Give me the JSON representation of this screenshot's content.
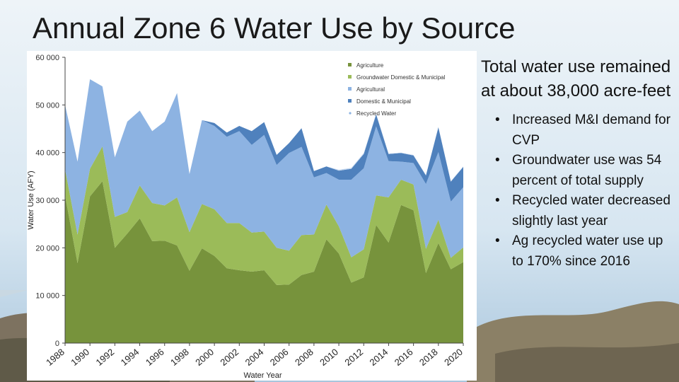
{
  "slide": {
    "title": "Annual Zone 6 Water Use by Source",
    "side_heading": "Total water use remained at about 38,000 acre-feet",
    "bullets": [
      "Increased M&I demand for CVP",
      "Groundwater use was 54 percent of total supply",
      "Recycled water decreased slightly last year",
      "Ag recycled water use up to 170% since 2016"
    ]
  },
  "chart_data": {
    "type": "area",
    "title": "",
    "xlabel": "Water Year",
    "ylabel": "Water Use (AFY)",
    "ylim": [
      0,
      60000
    ],
    "yticks": [
      0,
      10000,
      20000,
      30000,
      40000,
      50000,
      60000
    ],
    "ytick_labels": [
      "0",
      "10 000",
      "20 000",
      "30 000",
      "40 000",
      "50 000",
      "60 000"
    ],
    "xticks": [
      1988,
      1990,
      1992,
      1994,
      1996,
      1998,
      2000,
      2002,
      2004,
      2006,
      2008,
      2010,
      2012,
      2014,
      2016,
      2018,
      2020
    ],
    "stacked": true,
    "legend_position": "top-right",
    "x": [
      1988,
      1989,
      1990,
      1991,
      1992,
      1993,
      1994,
      1995,
      1996,
      1997,
      1998,
      1999,
      2000,
      2001,
      2002,
      2003,
      2004,
      2005,
      2006,
      2007,
      2008,
      2009,
      2010,
      2011,
      2012,
      2013,
      2014,
      2015,
      2016,
      2017,
      2018,
      2019,
      2020
    ],
    "series": [
      {
        "name": "Agriculture",
        "color": "#77933c",
        "values": [
          31000,
          16800,
          30800,
          34000,
          20000,
          23000,
          26200,
          21400,
          21500,
          20500,
          15200,
          19900,
          18300,
          15700,
          15300,
          15000,
          15300,
          12200,
          12300,
          14300,
          15000,
          21800,
          18800,
          12700,
          13800,
          24800,
          21100,
          29000,
          27900,
          14700,
          21000,
          15500,
          17000
        ]
      },
      {
        "name": "Groundwater Domestic & Municipal",
        "color": "#9bbb59",
        "values": [
          5500,
          6000,
          5800,
          7300,
          6500,
          4500,
          6900,
          8000,
          7400,
          10100,
          8100,
          9300,
          9800,
          9500,
          9900,
          8200,
          8100,
          7800,
          7100,
          8400,
          7800,
          7300,
          5700,
          5300,
          5900,
          6200,
          9500,
          5300,
          5400,
          5100,
          4900,
          2400,
          3100
        ]
      },
      {
        "name": "Agricultural",
        "color": "#8db3e2",
        "values": [
          13500,
          15300,
          18800,
          12600,
          12500,
          19000,
          15700,
          15100,
          17600,
          21900,
          12200,
          17600,
          17500,
          18100,
          19300,
          18400,
          20300,
          17400,
          20500,
          18500,
          12000,
          6600,
          9800,
          16300,
          17000,
          14500,
          7600,
          3800,
          4500,
          13600,
          14200,
          11800,
          12600
        ]
      },
      {
        "name": "Domestic & Municipal",
        "color": "#4f81bd",
        "values": [
          0,
          0,
          0,
          0,
          0,
          0,
          0,
          0,
          0,
          0,
          0,
          0,
          600,
          900,
          1100,
          2900,
          2700,
          2100,
          2100,
          3900,
          1300,
          1400,
          1900,
          2300,
          3000,
          2500,
          1500,
          1800,
          1600,
          1800,
          5200,
          4200,
          4300
        ]
      },
      {
        "name": "Recycled Water",
        "color": "#c6d9f1",
        "values": [
          0,
          0,
          0,
          0,
          0,
          0,
          0,
          0,
          0,
          0,
          0,
          0,
          0,
          0,
          0,
          0,
          0,
          0,
          0,
          0,
          0,
          0,
          200,
          200,
          200,
          200,
          100,
          100,
          100,
          100,
          100,
          100,
          100
        ]
      }
    ]
  },
  "palette": {
    "sky": "#bcd5ea",
    "hills": "#a99a7a"
  }
}
